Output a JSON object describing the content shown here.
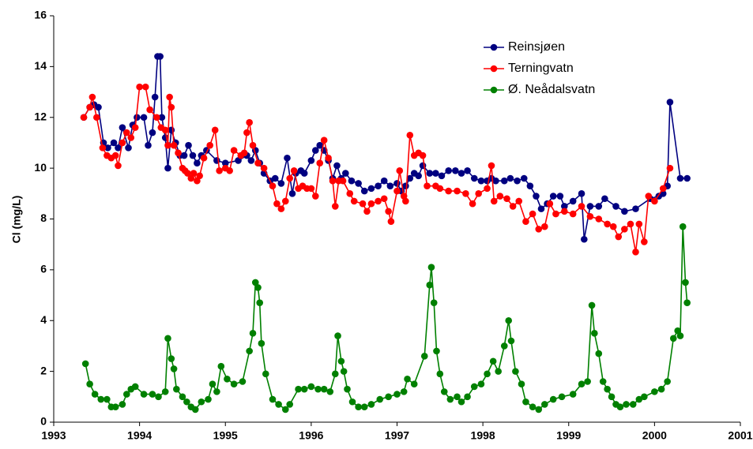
{
  "chart_data": {
    "type": "line",
    "y_label": "Cl (mg/L)",
    "legend": "upper right",
    "xlim": [
      1993,
      2001
    ],
    "xticks": [
      1993,
      1994,
      1995,
      1996,
      1997,
      1998,
      1999,
      2000,
      2001
    ],
    "ylim": [
      0,
      16
    ],
    "yticks": [
      0,
      2,
      4,
      6,
      8,
      10,
      12,
      14,
      16
    ],
    "series": [
      {
        "name": "Reinsjøen",
        "color": "#000080",
        "x": [
          1993.35,
          1993.42,
          1993.47,
          1993.52,
          1993.58,
          1993.63,
          1993.7,
          1993.75,
          1993.8,
          1993.87,
          1993.92,
          1993.97,
          1994.05,
          1994.1,
          1994.15,
          1994.18,
          1994.21,
          1994.24,
          1994.26,
          1994.3,
          1994.33,
          1994.37,
          1994.42,
          1994.47,
          1994.52,
          1994.57,
          1994.62,
          1994.67,
          1994.72,
          1994.78,
          1994.9,
          1995.0,
          1995.15,
          1995.25,
          1995.3,
          1995.35,
          1995.4,
          1995.45,
          1995.52,
          1995.58,
          1995.65,
          1995.72,
          1995.78,
          1995.82,
          1995.88,
          1995.92,
          1996.0,
          1996.05,
          1996.1,
          1996.15,
          1996.2,
          1996.25,
          1996.3,
          1996.35,
          1996.4,
          1996.47,
          1996.55,
          1996.62,
          1996.7,
          1996.78,
          1996.85,
          1996.92,
          1997.0,
          1997.05,
          1997.1,
          1997.15,
          1997.2,
          1997.25,
          1997.3,
          1997.38,
          1997.45,
          1997.52,
          1997.6,
          1997.68,
          1997.75,
          1997.82,
          1997.9,
          1997.98,
          1998.05,
          1998.1,
          1998.15,
          1998.25,
          1998.32,
          1998.4,
          1998.48,
          1998.55,
          1998.62,
          1998.68,
          1998.75,
          1998.82,
          1998.9,
          1998.95,
          1999.05,
          1999.15,
          1999.18,
          1999.25,
          1999.35,
          1999.42,
          1999.55,
          1999.65,
          1999.78,
          1999.95,
          2000.05,
          2000.1,
          2000.15,
          2000.18,
          2000.3,
          2000.38
        ],
        "values": [
          12.0,
          12.4,
          12.5,
          12.4,
          11.0,
          10.8,
          11.0,
          10.8,
          11.6,
          10.8,
          11.7,
          12.0,
          12.0,
          10.9,
          11.4,
          12.8,
          14.4,
          14.4,
          12.0,
          11.2,
          10.0,
          11.5,
          11.0,
          10.5,
          10.5,
          10.9,
          10.5,
          10.2,
          10.5,
          10.7,
          10.3,
          10.2,
          10.3,
          10.5,
          10.3,
          10.7,
          10.2,
          9.8,
          9.5,
          9.6,
          9.4,
          10.4,
          9.0,
          9.8,
          9.9,
          9.8,
          10.3,
          10.7,
          10.9,
          10.7,
          10.3,
          9.6,
          10.1,
          9.6,
          9.8,
          9.5,
          9.4,
          9.1,
          9.2,
          9.3,
          9.5,
          9.3,
          9.4,
          9.1,
          9.3,
          9.6,
          9.8,
          9.7,
          10.1,
          9.8,
          9.8,
          9.7,
          9.9,
          9.9,
          9.8,
          9.9,
          9.6,
          9.5,
          9.5,
          9.6,
          9.5,
          9.5,
          9.6,
          9.5,
          9.6,
          9.3,
          8.9,
          8.4,
          8.6,
          8.9,
          8.9,
          8.5,
          8.7,
          9.0,
          7.2,
          8.5,
          8.5,
          8.8,
          8.5,
          8.3,
          8.4,
          8.8,
          8.9,
          9.0,
          9.3,
          12.6,
          9.6,
          9.6
        ]
      },
      {
        "name": "Terningvatn",
        "color": "#ff0000",
        "x": [
          1993.35,
          1993.42,
          1993.45,
          1993.5,
          1993.57,
          1993.62,
          1993.67,
          1993.72,
          1993.75,
          1993.8,
          1993.85,
          1993.9,
          1993.95,
          1994.0,
          1994.07,
          1994.12,
          1994.2,
          1994.25,
          1994.3,
          1994.33,
          1994.35,
          1994.37,
          1994.4,
          1994.45,
          1994.5,
          1994.53,
          1994.56,
          1994.6,
          1994.63,
          1994.67,
          1994.7,
          1994.75,
          1994.82,
          1994.88,
          1994.93,
          1995.0,
          1995.05,
          1995.1,
          1995.18,
          1995.22,
          1995.25,
          1995.28,
          1995.32,
          1995.38,
          1995.45,
          1995.55,
          1995.6,
          1995.65,
          1995.7,
          1995.75,
          1995.8,
          1995.85,
          1995.9,
          1995.95,
          1996.0,
          1996.05,
          1996.1,
          1996.15,
          1996.2,
          1996.25,
          1996.28,
          1996.32,
          1996.37,
          1996.45,
          1996.5,
          1996.6,
          1996.65,
          1996.7,
          1996.78,
          1996.85,
          1996.9,
          1996.93,
          1997.0,
          1997.03,
          1997.08,
          1997.1,
          1997.15,
          1997.2,
          1997.25,
          1997.3,
          1997.35,
          1997.45,
          1997.5,
          1997.6,
          1997.7,
          1997.8,
          1997.88,
          1997.95,
          1998.05,
          1998.1,
          1998.13,
          1998.2,
          1998.28,
          1998.35,
          1998.42,
          1998.5,
          1998.58,
          1998.65,
          1998.72,
          1998.78,
          1998.85,
          1998.95,
          1999.05,
          1999.15,
          1999.25,
          1999.35,
          1999.45,
          1999.52,
          1999.58,
          1999.65,
          1999.72,
          1999.78,
          1999.82,
          1999.88,
          1999.93,
          2000.0,
          2000.1,
          2000.18
        ],
        "values": [
          12.0,
          12.4,
          12.8,
          12.0,
          10.8,
          10.5,
          10.4,
          10.5,
          10.1,
          11.0,
          11.4,
          11.2,
          11.6,
          13.2,
          13.2,
          12.3,
          12.0,
          11.6,
          11.5,
          10.9,
          12.8,
          12.4,
          10.9,
          10.6,
          10.0,
          9.9,
          9.8,
          9.6,
          9.8,
          9.5,
          9.7,
          10.4,
          10.9,
          11.5,
          9.9,
          10.0,
          9.9,
          10.7,
          10.5,
          10.6,
          11.4,
          11.8,
          10.9,
          10.2,
          10.0,
          9.3,
          8.6,
          8.4,
          8.7,
          9.6,
          9.9,
          9.2,
          9.3,
          9.2,
          9.2,
          8.9,
          10.2,
          11.1,
          10.4,
          9.5,
          8.5,
          9.5,
          9.5,
          9.0,
          8.7,
          8.6,
          8.3,
          8.6,
          8.7,
          8.8,
          8.3,
          7.9,
          9.1,
          9.9,
          8.9,
          8.7,
          11.3,
          10.5,
          10.6,
          10.5,
          9.3,
          9.3,
          9.2,
          9.1,
          9.1,
          9.0,
          8.6,
          9.0,
          9.2,
          10.1,
          8.7,
          8.9,
          8.8,
          8.5,
          8.7,
          7.9,
          8.2,
          7.6,
          7.7,
          8.6,
          8.2,
          8.3,
          8.2,
          8.5,
          8.1,
          8.0,
          7.8,
          7.7,
          7.3,
          7.6,
          7.8,
          6.7,
          7.8,
          7.1,
          8.9,
          8.7,
          9.2,
          10.0
        ]
      },
      {
        "name": "Ø. Neådalsvatn",
        "color": "#008000",
        "x": [
          1993.37,
          1993.42,
          1993.48,
          1993.55,
          1993.62,
          1993.67,
          1993.72,
          1993.8,
          1993.85,
          1993.9,
          1993.95,
          1994.05,
          1994.15,
          1994.22,
          1994.3,
          1994.33,
          1994.37,
          1994.4,
          1994.43,
          1994.5,
          1994.55,
          1994.6,
          1994.65,
          1994.72,
          1994.8,
          1994.85,
          1994.9,
          1994.95,
          1995.02,
          1995.1,
          1995.2,
          1995.28,
          1995.32,
          1995.35,
          1995.38,
          1995.4,
          1995.42,
          1995.47,
          1995.55,
          1995.62,
          1995.7,
          1995.75,
          1995.85,
          1995.92,
          1996.0,
          1996.08,
          1996.15,
          1996.22,
          1996.28,
          1996.31,
          1996.35,
          1996.38,
          1996.42,
          1996.48,
          1996.55,
          1996.62,
          1996.7,
          1996.8,
          1996.9,
          1997.0,
          1997.08,
          1997.12,
          1997.2,
          1997.32,
          1997.38,
          1997.4,
          1997.43,
          1997.46,
          1997.5,
          1997.55,
          1997.62,
          1997.7,
          1997.75,
          1997.82,
          1997.9,
          1997.98,
          1998.05,
          1998.12,
          1998.18,
          1998.25,
          1998.3,
          1998.33,
          1998.38,
          1998.45,
          1998.5,
          1998.58,
          1998.65,
          1998.72,
          1998.82,
          1998.92,
          1999.05,
          1999.15,
          1999.22,
          1999.27,
          1999.3,
          1999.35,
          1999.4,
          1999.45,
          1999.5,
          1999.55,
          1999.6,
          1999.67,
          1999.75,
          1999.82,
          1999.88,
          2000.0,
          2000.08,
          2000.15,
          2000.22,
          2000.27,
          2000.3,
          2000.33,
          2000.36,
          2000.38
        ],
        "values": [
          2.3,
          1.5,
          1.1,
          0.9,
          0.9,
          0.6,
          0.6,
          0.7,
          1.1,
          1.3,
          1.4,
          1.1,
          1.1,
          1.0,
          1.2,
          3.3,
          2.5,
          2.1,
          1.3,
          1.0,
          0.8,
          0.6,
          0.5,
          0.8,
          0.9,
          1.5,
          1.2,
          2.2,
          1.7,
          1.5,
          1.6,
          2.8,
          3.5,
          5.5,
          5.3,
          4.7,
          3.1,
          1.9,
          0.9,
          0.7,
          0.5,
          0.7,
          1.3,
          1.3,
          1.4,
          1.3,
          1.3,
          1.2,
          1.9,
          3.4,
          2.4,
          2.0,
          1.3,
          0.8,
          0.6,
          0.6,
          0.7,
          0.9,
          1.0,
          1.1,
          1.2,
          1.7,
          1.5,
          2.6,
          5.4,
          6.1,
          4.7,
          2.8,
          1.9,
          1.2,
          0.9,
          1.0,
          0.8,
          1.0,
          1.4,
          1.5,
          1.9,
          2.4,
          2.0,
          3.0,
          4.0,
          3.2,
          2.0,
          1.5,
          0.8,
          0.6,
          0.5,
          0.7,
          0.9,
          1.0,
          1.1,
          1.5,
          1.6,
          4.6,
          3.5,
          2.7,
          1.6,
          1.3,
          1.0,
          0.7,
          0.6,
          0.7,
          0.7,
          0.9,
          1.0,
          1.2,
          1.3,
          1.6,
          3.3,
          3.6,
          3.4,
          7.7,
          5.5,
          4.7
        ]
      }
    ]
  }
}
